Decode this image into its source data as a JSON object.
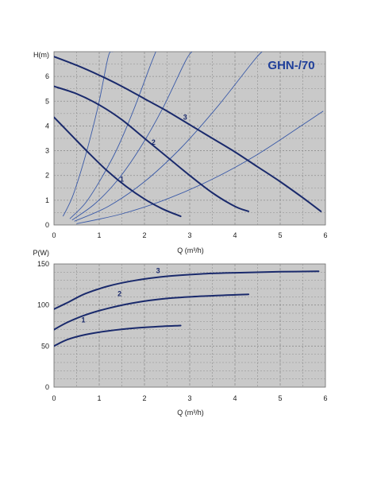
{
  "colors": {
    "plot_bg": "#c9c9c9",
    "grid": "#8e8e8e",
    "pump_curve": "#1a2a6c",
    "system_curve": "#3a5aa8",
    "title": "#1f3f9a"
  },
  "chart_data": [
    {
      "type": "line",
      "title": "GHN-/70",
      "xlabel": "Q (m³/h)",
      "ylabel": "H(m)",
      "xlim": [
        0,
        6
      ],
      "ylim": [
        0,
        7
      ],
      "x_ticks": [
        "0",
        "1",
        "2",
        "3",
        "4",
        "5",
        "6"
      ],
      "y_ticks": [
        "0",
        "1",
        "2",
        "3",
        "4",
        "5",
        "6"
      ],
      "grid": true,
      "series": [
        {
          "name": "1",
          "label_at": [
            1.5,
            1.75
          ],
          "points": [
            [
              0,
              4.35
            ],
            [
              0.4,
              3.6
            ],
            [
              0.8,
              2.85
            ],
            [
              1.2,
              2.15
            ],
            [
              1.6,
              1.55
            ],
            [
              2.0,
              1.05
            ],
            [
              2.4,
              0.65
            ],
            [
              2.8,
              0.35
            ]
          ]
        },
        {
          "name": "2",
          "label_at": [
            2.2,
            3.25
          ],
          "points": [
            [
              0,
              5.6
            ],
            [
              0.5,
              5.3
            ],
            [
              1.0,
              4.85
            ],
            [
              1.5,
              4.25
            ],
            [
              2.0,
              3.5
            ],
            [
              2.5,
              2.75
            ],
            [
              3.0,
              2.0
            ],
            [
              3.5,
              1.3
            ],
            [
              4.0,
              0.75
            ],
            [
              4.3,
              0.55
            ]
          ]
        },
        {
          "name": "3",
          "label_at": [
            2.9,
            4.25
          ],
          "points": [
            [
              0,
              6.8
            ],
            [
              0.5,
              6.45
            ],
            [
              1.0,
              6.05
            ],
            [
              1.5,
              5.6
            ],
            [
              2.0,
              5.1
            ],
            [
              2.5,
              4.6
            ],
            [
              3.0,
              4.05
            ],
            [
              3.5,
              3.5
            ],
            [
              4.0,
              2.95
            ],
            [
              4.5,
              2.35
            ],
            [
              5.0,
              1.75
            ],
            [
              5.5,
              1.1
            ],
            [
              5.9,
              0.55
            ]
          ]
        }
      ],
      "system_curves": [
        {
          "points": [
            [
              0.2,
              0.35
            ],
            [
              0.4,
              1.1
            ],
            [
              0.6,
              2.2
            ],
            [
              0.8,
              3.5
            ],
            [
              1.0,
              5.0
            ],
            [
              1.2,
              6.8
            ],
            [
              1.3,
              7.0
            ]
          ]
        },
        {
          "points": [
            [
              0.35,
              0.25
            ],
            [
              0.7,
              0.9
            ],
            [
              1.05,
              1.9
            ],
            [
              1.4,
              3.1
            ],
            [
              1.75,
              4.6
            ],
            [
              2.1,
              6.3
            ],
            [
              2.25,
              7.0
            ]
          ]
        },
        {
          "points": [
            [
              0.4,
              0.2
            ],
            [
              0.9,
              0.85
            ],
            [
              1.4,
              1.8
            ],
            [
              1.9,
              3.1
            ],
            [
              2.4,
              4.7
            ],
            [
              2.9,
              6.6
            ],
            [
              3.05,
              7.0
            ]
          ]
        },
        {
          "points": [
            [
              0.45,
              0.15
            ],
            [
              1.2,
              0.75
            ],
            [
              2.0,
              1.75
            ],
            [
              2.8,
              3.1
            ],
            [
              3.6,
              4.75
            ],
            [
              4.4,
              6.6
            ],
            [
              4.6,
              7.0
            ]
          ]
        },
        {
          "points": [
            [
              0.5,
              0.05
            ],
            [
              1.5,
              0.45
            ],
            [
              2.5,
              1.05
            ],
            [
              3.5,
              1.85
            ],
            [
              4.5,
              2.85
            ],
            [
              5.5,
              4.05
            ],
            [
              5.95,
              4.6
            ]
          ]
        }
      ]
    },
    {
      "type": "line",
      "title": "",
      "xlabel": "Q (m³/h)",
      "ylabel": "P(W)",
      "xlim": [
        0,
        6
      ],
      "ylim": [
        0,
        150
      ],
      "x_ticks": [
        "0",
        "1",
        "2",
        "3",
        "4",
        "5",
        "6"
      ],
      "y_ticks": [
        "0",
        "50",
        "100",
        "150"
      ],
      "grid": true,
      "series": [
        {
          "name": "1",
          "label_at": [
            0.65,
            79
          ],
          "points": [
            [
              0,
              50
            ],
            [
              0.3,
              58
            ],
            [
              0.7,
              64
            ],
            [
              1.2,
              68.5
            ],
            [
              1.8,
              72
            ],
            [
              2.4,
              74
            ],
            [
              2.8,
              75
            ]
          ]
        },
        {
          "name": "2",
          "label_at": [
            1.45,
            111
          ],
          "points": [
            [
              0,
              70
            ],
            [
              0.3,
              79
            ],
            [
              0.7,
              88
            ],
            [
              1.2,
              96
            ],
            [
              1.8,
              103
            ],
            [
              2.5,
              108
            ],
            [
              3.2,
              110.5
            ],
            [
              3.8,
              112
            ],
            [
              4.3,
              113
            ]
          ]
        },
        {
          "name": "3",
          "label_at": [
            2.3,
            139
          ],
          "points": [
            [
              0,
              95
            ],
            [
              0.3,
              103
            ],
            [
              0.7,
              114
            ],
            [
              1.2,
              123
            ],
            [
              1.8,
              130
            ],
            [
              2.5,
              135
            ],
            [
              3.3,
              138
            ],
            [
              4.2,
              139.5
            ],
            [
              5.0,
              140.5
            ],
            [
              5.85,
              141
            ]
          ]
        }
      ]
    }
  ]
}
